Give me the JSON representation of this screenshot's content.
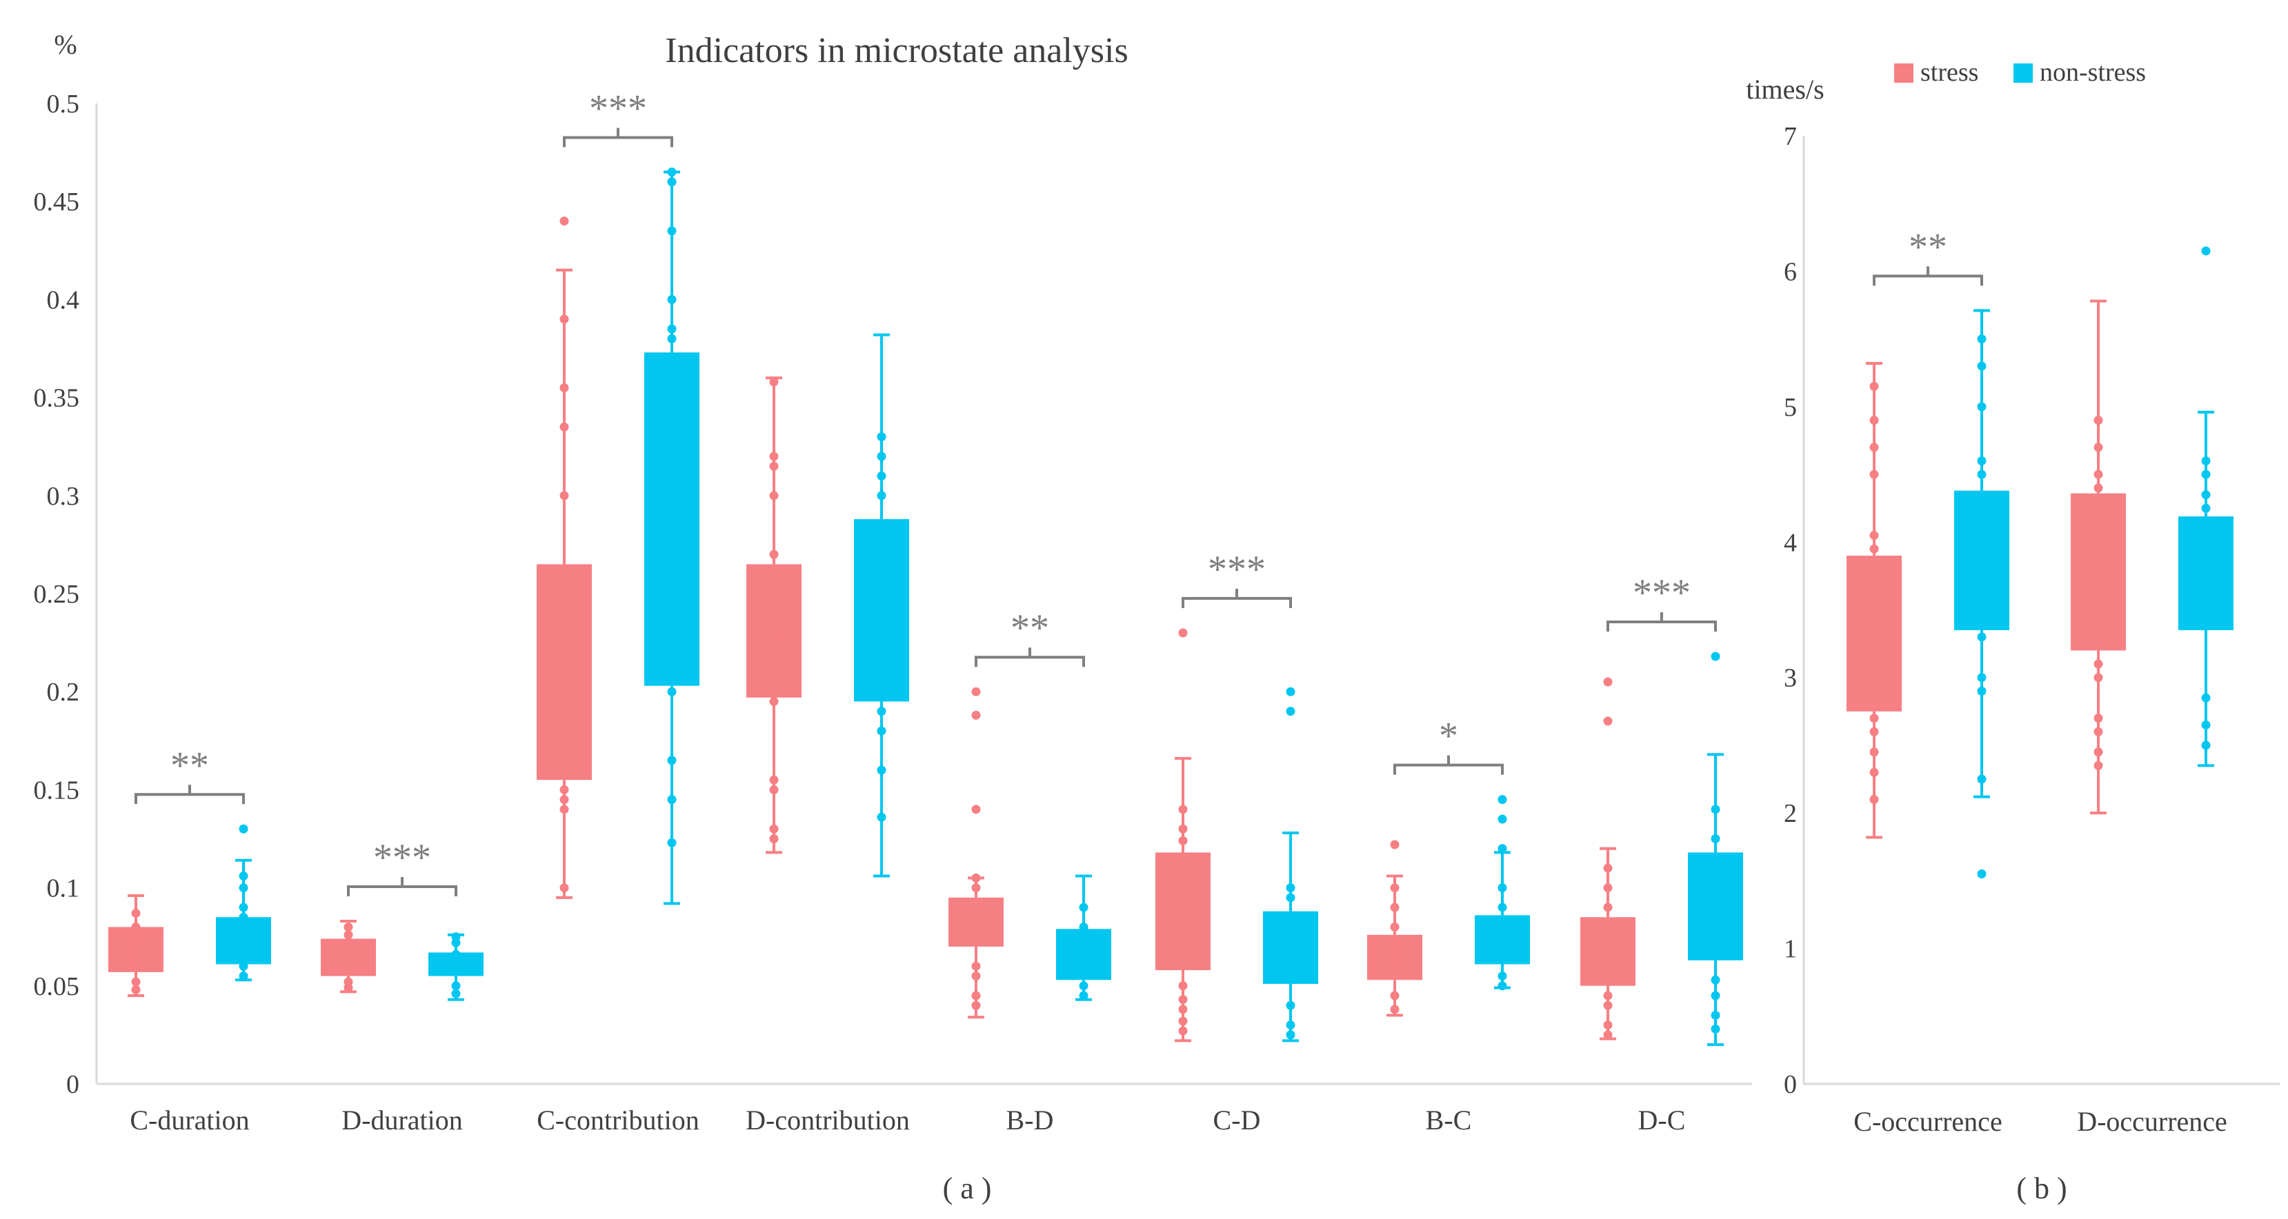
{
  "colors": {
    "stress": "#f67f83",
    "non_stress": "#00c6f0",
    "axis": "#d9d9d9",
    "text": "#404040",
    "bracket": "#7f7f7f"
  },
  "legend": {
    "stress": "stress",
    "non_stress": "non-stress",
    "placement": "top-right"
  },
  "chart_data": [
    {
      "type": "box",
      "title": "Indicators in microstate analysis",
      "ylabel": "%",
      "caption": "( a )",
      "ylim": [
        0,
        0.5
      ],
      "yticks": [
        0,
        0.05,
        0.1,
        0.15,
        0.2,
        0.25,
        0.3,
        0.35,
        0.4,
        0.45,
        0.5
      ],
      "ytick_labels": [
        "0",
        "0.05",
        "0.1",
        "0.15",
        "0.2",
        "0.25",
        "0.3",
        "0.35",
        "0.4",
        "0.45",
        "0.5"
      ],
      "grid": false,
      "categories": [
        "C-duration",
        "D-duration",
        "C-contribution",
        "D-contribution",
        "B-D",
        "C-D",
        "B-C",
        "D-C"
      ],
      "significance": [
        "**",
        "***",
        "***",
        "",
        "**",
        "***",
        "*",
        "***"
      ],
      "series": [
        {
          "name": "stress",
          "boxes": [
            {
              "min": 0.045,
              "q1": 0.057,
              "q3": 0.08,
              "max": 0.096,
              "points": [
                0.048,
                0.052,
                0.06,
                0.065,
                0.07,
                0.075,
                0.08,
                0.087
              ]
            },
            {
              "min": 0.047,
              "q1": 0.055,
              "q3": 0.074,
              "max": 0.083,
              "points": [
                0.049,
                0.052,
                0.058,
                0.063,
                0.068,
                0.072,
                0.076,
                0.08
              ]
            },
            {
              "min": 0.095,
              "q1": 0.155,
              "q3": 0.265,
              "max": 0.415,
              "points": [
                0.1,
                0.14,
                0.145,
                0.15,
                0.3,
                0.335,
                0.355,
                0.39,
                0.44
              ]
            },
            {
              "min": 0.118,
              "q1": 0.197,
              "q3": 0.265,
              "max": 0.36,
              "points": [
                0.125,
                0.13,
                0.15,
                0.155,
                0.195,
                0.23,
                0.27,
                0.3,
                0.315,
                0.32,
                0.358
              ]
            },
            {
              "min": 0.034,
              "q1": 0.07,
              "q3": 0.095,
              "max": 0.105,
              "points": [
                0.04,
                0.045,
                0.055,
                0.06,
                0.1,
                0.105,
                0.14,
                0.188,
                0.2
              ]
            },
            {
              "min": 0.022,
              "q1": 0.058,
              "q3": 0.118,
              "max": 0.166,
              "points": [
                0.027,
                0.032,
                0.038,
                0.043,
                0.05,
                0.124,
                0.13,
                0.14,
                0.23
              ]
            },
            {
              "min": 0.035,
              "q1": 0.053,
              "q3": 0.076,
              "max": 0.106,
              "points": [
                0.038,
                0.045,
                0.06,
                0.065,
                0.07,
                0.08,
                0.09,
                0.1,
                0.122
              ]
            },
            {
              "min": 0.023,
              "q1": 0.05,
              "q3": 0.085,
              "max": 0.12,
              "points": [
                0.025,
                0.03,
                0.04,
                0.045,
                0.09,
                0.1,
                0.11,
                0.185,
                0.205
              ]
            }
          ]
        },
        {
          "name": "non-stress",
          "boxes": [
            {
              "min": 0.053,
              "q1": 0.061,
              "q3": 0.085,
              "max": 0.114,
              "points": [
                0.055,
                0.06,
                0.065,
                0.07,
                0.085,
                0.09,
                0.1,
                0.106,
                0.13
              ]
            },
            {
              "min": 0.043,
              "q1": 0.055,
              "q3": 0.067,
              "max": 0.076,
              "points": [
                0.046,
                0.05,
                0.058,
                0.062,
                0.066,
                0.072,
                0.075
              ]
            },
            {
              "min": 0.092,
              "q1": 0.203,
              "q3": 0.373,
              "max": 0.465,
              "points": [
                0.123,
                0.145,
                0.165,
                0.2,
                0.215,
                0.38,
                0.385,
                0.4,
                0.435,
                0.46,
                0.465
              ]
            },
            {
              "min": 0.106,
              "q1": 0.195,
              "q3": 0.288,
              "max": 0.382,
              "points": [
                0.136,
                0.16,
                0.18,
                0.19,
                0.2,
                0.3,
                0.31,
                0.32,
                0.33
              ]
            },
            {
              "min": 0.043,
              "q1": 0.053,
              "q3": 0.079,
              "max": 0.106,
              "points": [
                0.045,
                0.05,
                0.06,
                0.07,
                0.08,
                0.09
              ]
            },
            {
              "min": 0.022,
              "q1": 0.051,
              "q3": 0.088,
              "max": 0.128,
              "points": [
                0.025,
                0.03,
                0.04,
                0.06,
                0.07,
                0.08,
                0.095,
                0.1,
                0.19,
                0.2
              ]
            },
            {
              "min": 0.049,
              "q1": 0.061,
              "q3": 0.086,
              "max": 0.118,
              "points": [
                0.05,
                0.055,
                0.065,
                0.09,
                0.1,
                0.12,
                0.135,
                0.145
              ]
            },
            {
              "min": 0.02,
              "q1": 0.063,
              "q3": 0.118,
              "max": 0.168,
              "points": [
                0.028,
                0.035,
                0.045,
                0.053,
                0.09,
                0.11,
                0.125,
                0.14,
                0.218
              ]
            }
          ]
        }
      ]
    },
    {
      "type": "box",
      "title": "",
      "ylabel": "times/s",
      "caption": "( b )",
      "ylim": [
        0,
        7
      ],
      "yticks": [
        0,
        1,
        2,
        3,
        4,
        5,
        6,
        7
      ],
      "ytick_labels": [
        "0",
        "1",
        "2",
        "3",
        "4",
        "5",
        "6",
        "7"
      ],
      "grid": false,
      "categories": [
        "C-occurrence",
        "D-occurrence"
      ],
      "significance": [
        "**",
        ""
      ],
      "series": [
        {
          "name": "stress",
          "boxes": [
            {
              "min": 1.82,
              "q1": 2.75,
              "q3": 3.9,
              "max": 5.32,
              "points": [
                2.1,
                2.3,
                2.45,
                2.6,
                2.7,
                3.95,
                4.05,
                4.5,
                4.7,
                4.9,
                5.15
              ]
            },
            {
              "min": 2.0,
              "q1": 3.2,
              "q3": 4.36,
              "max": 5.78,
              "points": [
                2.35,
                2.45,
                2.6,
                2.7,
                3.0,
                3.1,
                4.4,
                4.5,
                4.7,
                4.9
              ]
            }
          ]
        },
        {
          "name": "non-stress",
          "boxes": [
            {
              "min": 2.12,
              "q1": 3.35,
              "q3": 4.38,
              "max": 5.71,
              "points": [
                1.55,
                2.25,
                2.9,
                3.0,
                3.3,
                4.5,
                4.6,
                5.0,
                5.3,
                5.5
              ]
            },
            {
              "min": 2.35,
              "q1": 3.35,
              "q3": 4.19,
              "max": 4.96,
              "points": [
                2.5,
                2.65,
                2.85,
                4.25,
                4.35,
                4.5,
                4.6,
                6.15
              ]
            }
          ]
        }
      ]
    }
  ]
}
